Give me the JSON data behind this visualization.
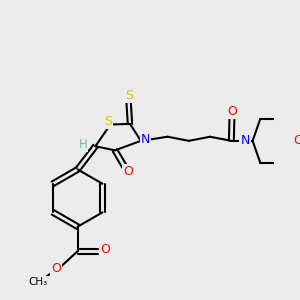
{
  "bg_color": "#ececec",
  "atom_colors": {
    "C": "#000000",
    "H": "#7ab5b5",
    "N": "#0000ff",
    "O": "#ff0000",
    "S": "#cccc00"
  },
  "bond_color": "#000000",
  "bond_width": 1.5
}
